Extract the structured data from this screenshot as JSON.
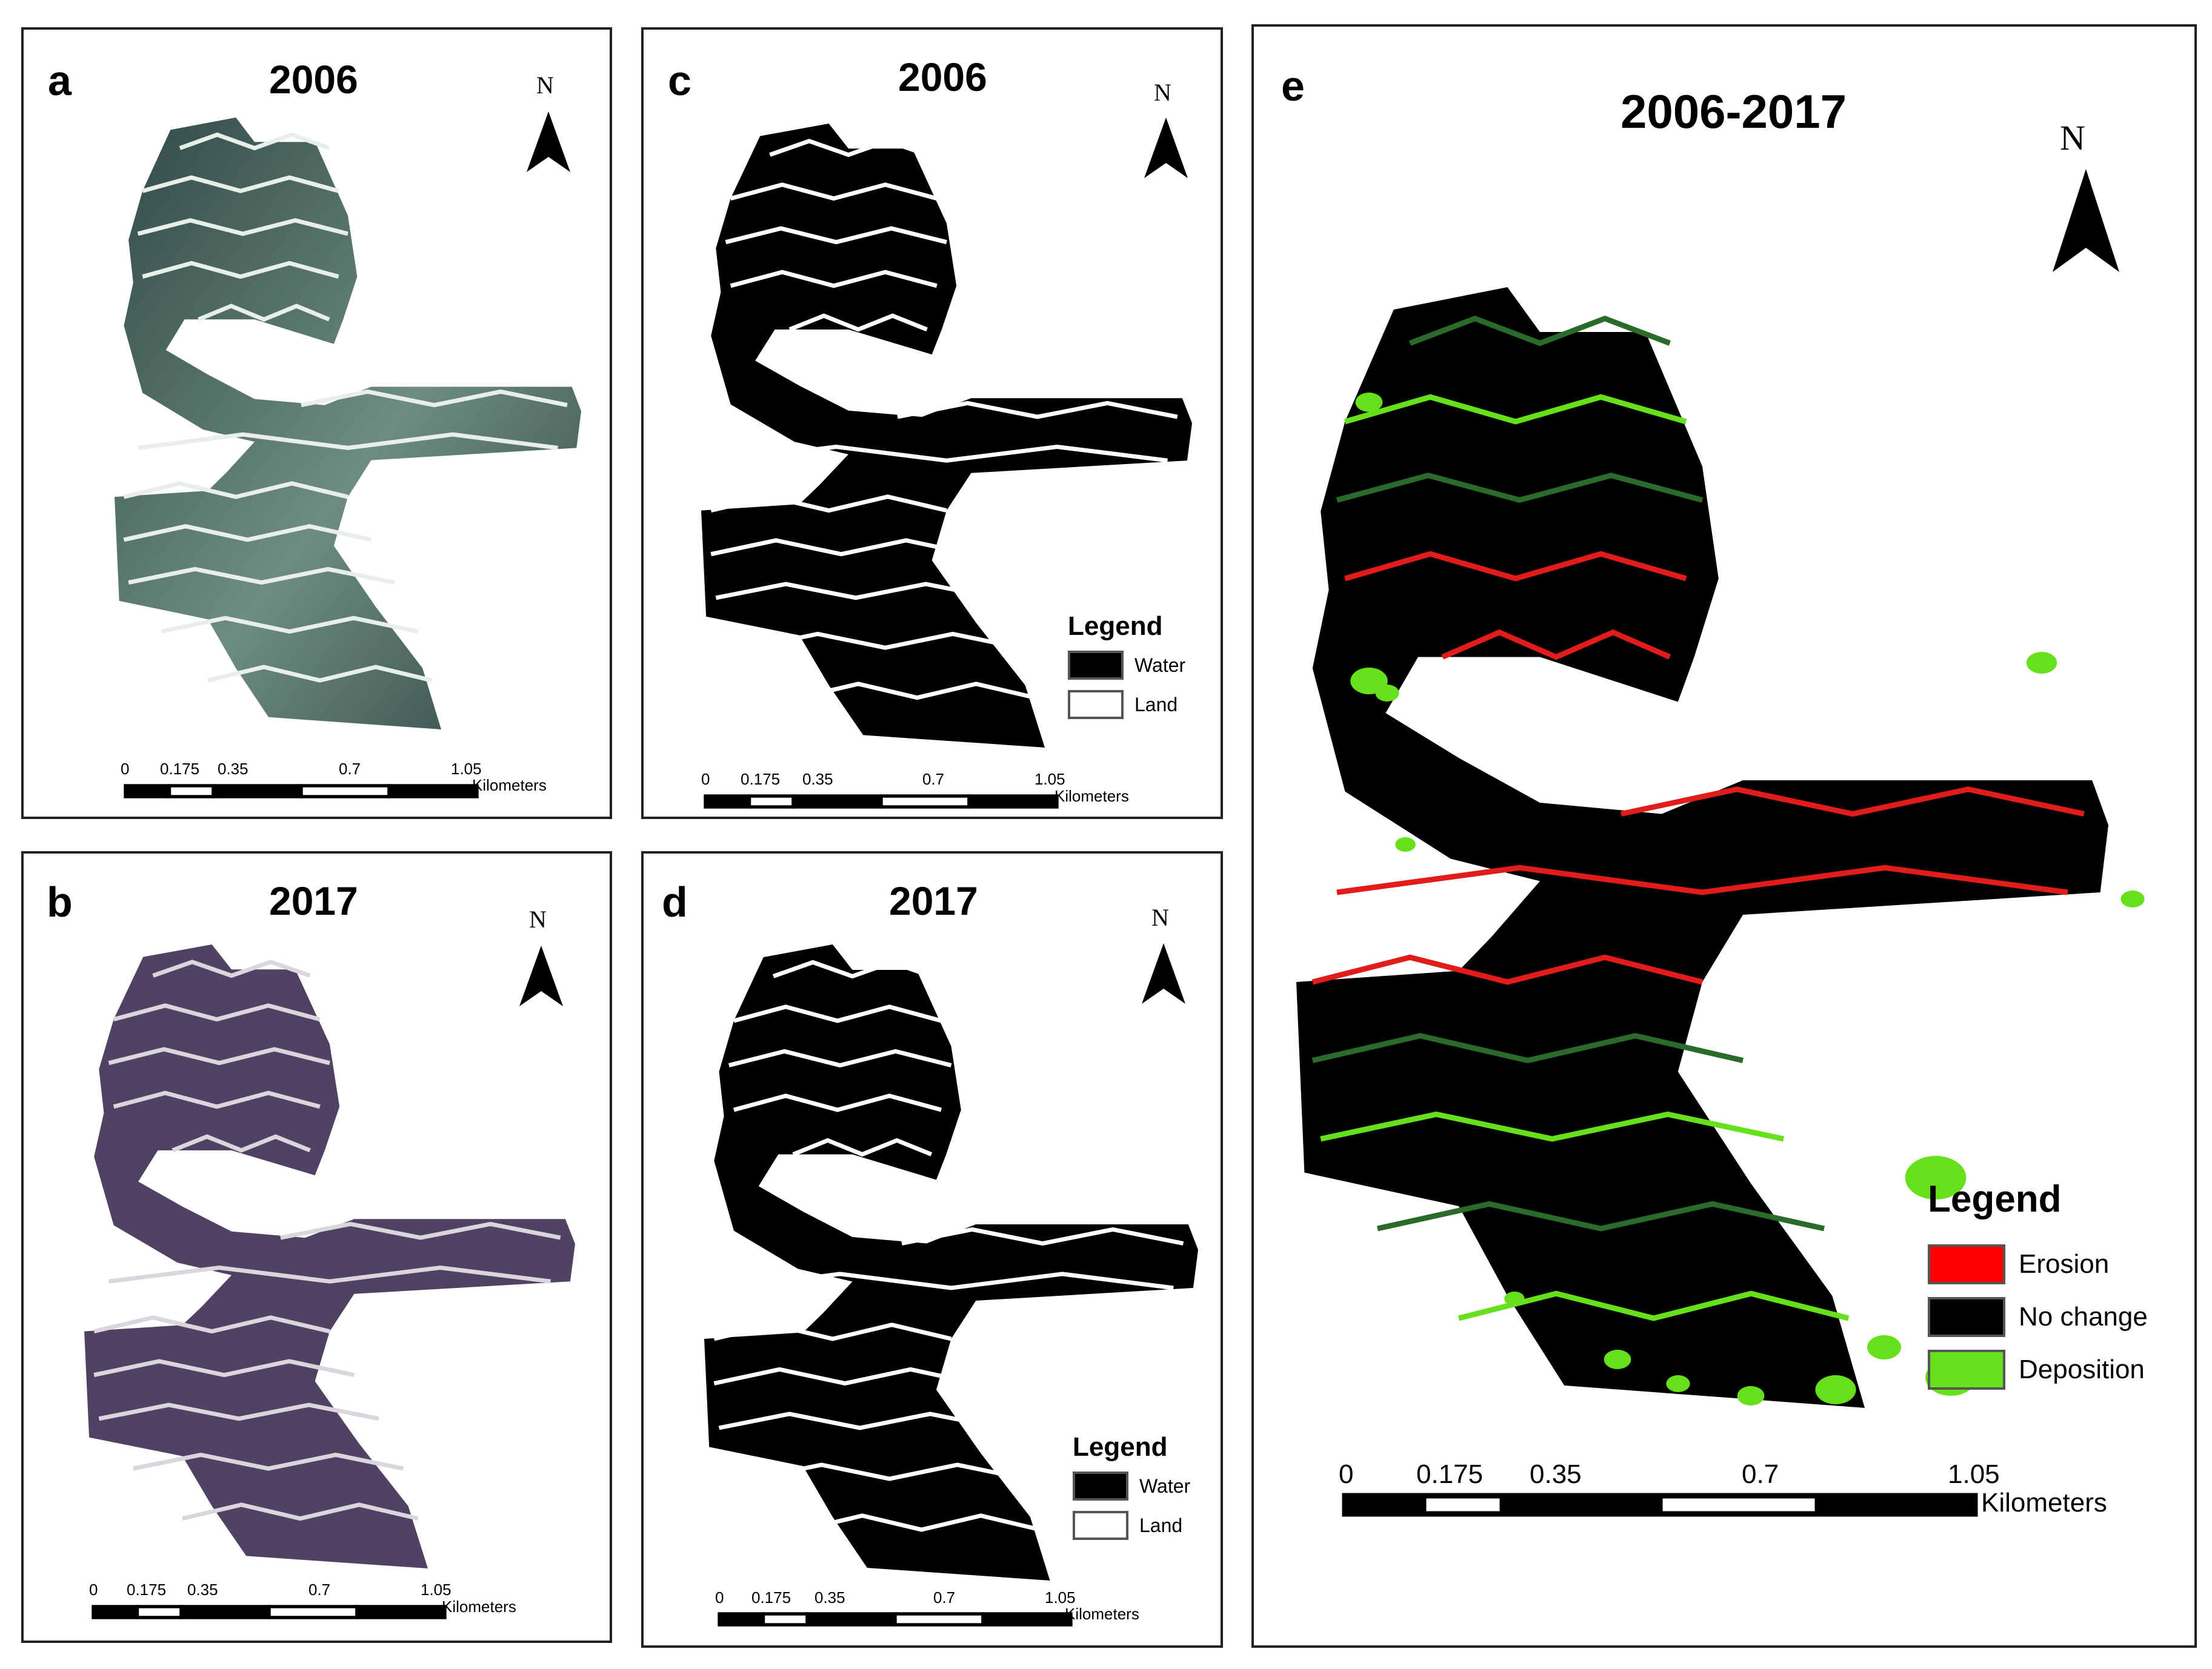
{
  "panels": {
    "a": {
      "letter": "a",
      "year": "2006"
    },
    "b": {
      "letter": "b",
      "year": "2017"
    },
    "c": {
      "letter": "c",
      "year": "2006"
    },
    "d": {
      "letter": "d",
      "year": "2017"
    },
    "e": {
      "letter": "e",
      "year": "2006-2017"
    }
  },
  "north_label": "N",
  "scale": {
    "ticks": [
      "0",
      "0.175",
      "0.35",
      "0.7",
      "1.05"
    ],
    "unit": "Kilometers"
  },
  "legend_cd": {
    "title": "Legend",
    "items": [
      {
        "label": "Water",
        "color": "#000000"
      },
      {
        "label": "Land",
        "color": "#ffffff"
      }
    ]
  },
  "legend_e": {
    "title": "Legend",
    "items": [
      {
        "label": "Erosion",
        "color": "#ff0000"
      },
      {
        "label": "No change",
        "color": "#000000"
      },
      {
        "label": "Deposition",
        "color": "#66e01a"
      }
    ]
  },
  "colors": {
    "a_fill": "#3f5a55",
    "b_fill": "#4f4262",
    "cd_fill": "#000000",
    "e_fill": "#000000",
    "erosion": "#e21b1b",
    "deposition": "#66e01a"
  }
}
